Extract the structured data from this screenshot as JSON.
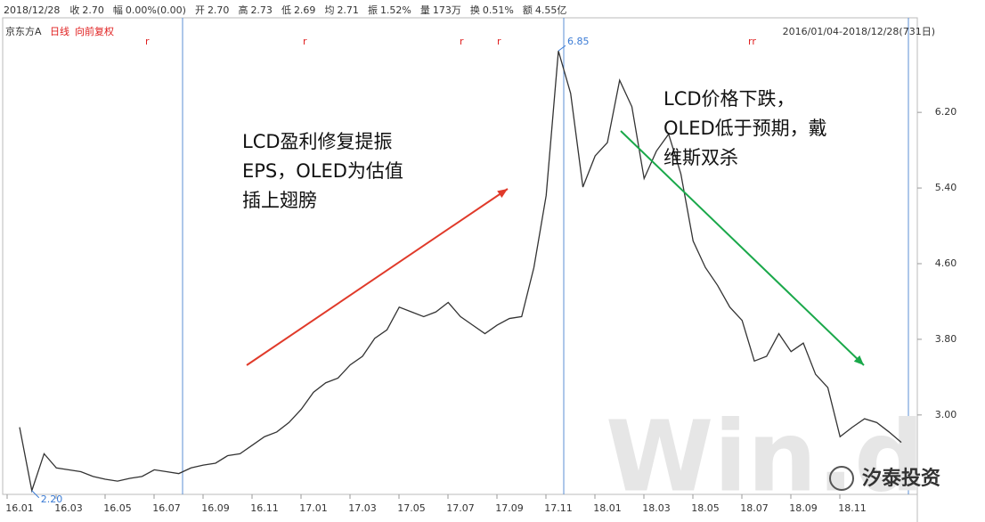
{
  "chart_data": {
    "type": "line",
    "info_bar": [
      {
        "label": "2018/12/28",
        "value": ""
      },
      {
        "label": "收",
        "value": "2.70",
        "color": "#333"
      },
      {
        "label": "幅",
        "value": "0.00%(0.00)",
        "color": "#333"
      },
      {
        "label": "开",
        "value": "2.70",
        "color": "#333"
      },
      {
        "label": "高",
        "value": "2.73",
        "color": "#e02020"
      },
      {
        "label": "低",
        "value": "2.69",
        "color": "#1a9a1a"
      },
      {
        "label": "均",
        "value": "2.71",
        "color": "#e02020"
      },
      {
        "label": "振",
        "value": "1.52%",
        "color": "#333"
      },
      {
        "label": "量",
        "value": "173万",
        "color": "#333"
      },
      {
        "label": "换",
        "value": "0.51%",
        "color": "#333"
      },
      {
        "label": "额",
        "value": "4.55亿",
        "color": "#333"
      }
    ],
    "stock_name": "京东方A",
    "period": "日线",
    "adjust": "向前复权",
    "date_range": "2016/01/04-2018/12/28(731日)",
    "categories": [
      "16.01",
      null,
      null,
      null,
      "16.03",
      null,
      null,
      null,
      "16.05",
      null,
      null,
      null,
      "16.07",
      null,
      null,
      null,
      "16.09",
      null,
      null,
      null,
      "16.11",
      null,
      null,
      null,
      "17.01",
      null,
      null,
      null,
      "17.03",
      null,
      null,
      null,
      "17.05",
      null,
      null,
      null,
      "17.07",
      null,
      null,
      null,
      "17.09",
      null,
      null,
      null,
      "17.11",
      null,
      null,
      null,
      "18.01",
      null,
      null,
      null,
      "18.03",
      null,
      null,
      null,
      "18.05",
      null,
      null,
      null,
      "18.07",
      null,
      null,
      null,
      "18.09",
      null,
      null,
      null,
      "18.11",
      null,
      null,
      null,
      null
    ],
    "series": [
      {
        "color": "#333333",
        "values": [
          2.87,
          2.2,
          2.59,
          2.44,
          2.42,
          2.4,
          2.35,
          2.32,
          2.3,
          2.33,
          2.35,
          2.42,
          2.4,
          2.38,
          2.44,
          2.47,
          2.49,
          2.57,
          2.59,
          2.68,
          2.77,
          2.82,
          2.92,
          3.06,
          3.24,
          3.34,
          3.39,
          3.53,
          3.62,
          3.81,
          3.9,
          4.14,
          4.09,
          4.04,
          4.09,
          4.19,
          4.04,
          3.95,
          3.86,
          3.95,
          4.02,
          4.04,
          4.56,
          5.32,
          6.85,
          6.4,
          5.41,
          5.74,
          5.88,
          6.54,
          6.26,
          5.5,
          5.79,
          5.97,
          5.55,
          4.84,
          4.56,
          4.37,
          4.14,
          4.0,
          3.57,
          3.62,
          3.86,
          3.67,
          3.76,
          3.43,
          3.29,
          2.77,
          2.87,
          2.96,
          2.92,
          2.82,
          2.71
        ],
        "value_labels": [
          null,
          "2.20",
          null,
          null,
          null,
          null,
          null,
          null,
          null,
          null,
          null,
          null,
          null,
          null,
          null,
          null,
          null,
          null,
          null,
          null,
          null,
          null,
          null,
          null,
          null,
          null,
          null,
          null,
          null,
          null,
          null,
          null,
          null,
          null,
          null,
          null,
          null,
          null,
          null,
          null,
          null,
          null,
          null,
          null,
          "6.85",
          null,
          null,
          null,
          null,
          null,
          null,
          null,
          null,
          null,
          null,
          null,
          null,
          null,
          null,
          null,
          null,
          null,
          null,
          null,
          null,
          null,
          null,
          null,
          null,
          null,
          null,
          null,
          null
        ]
      }
    ],
    "ylim": [
      2.16,
      7.2
    ],
    "yticks": [
      {
        "value": 3.0,
        "label": "3.00"
      },
      {
        "value": 3.8,
        "label": "3.80"
      },
      {
        "value": 4.6,
        "label": "4.60"
      },
      {
        "value": 5.4,
        "label": "5.40"
      },
      {
        "value": 6.2,
        "label": "6.20"
      }
    ],
    "annotations": [
      {
        "lines": [
          "LCD盈利修复提振",
          "EPS，OLED为估值",
          "插上翅膀"
        ],
        "arrow_color": "#e03a2a"
      },
      {
        "lines": [
          "LCD价格下跌，",
          "OLED低于预期，戴",
          "维斯双杀"
        ],
        "arrow_color": "#1aa84a"
      }
    ],
    "watermark": "Win.d",
    "logo": "汐泰投资"
  }
}
